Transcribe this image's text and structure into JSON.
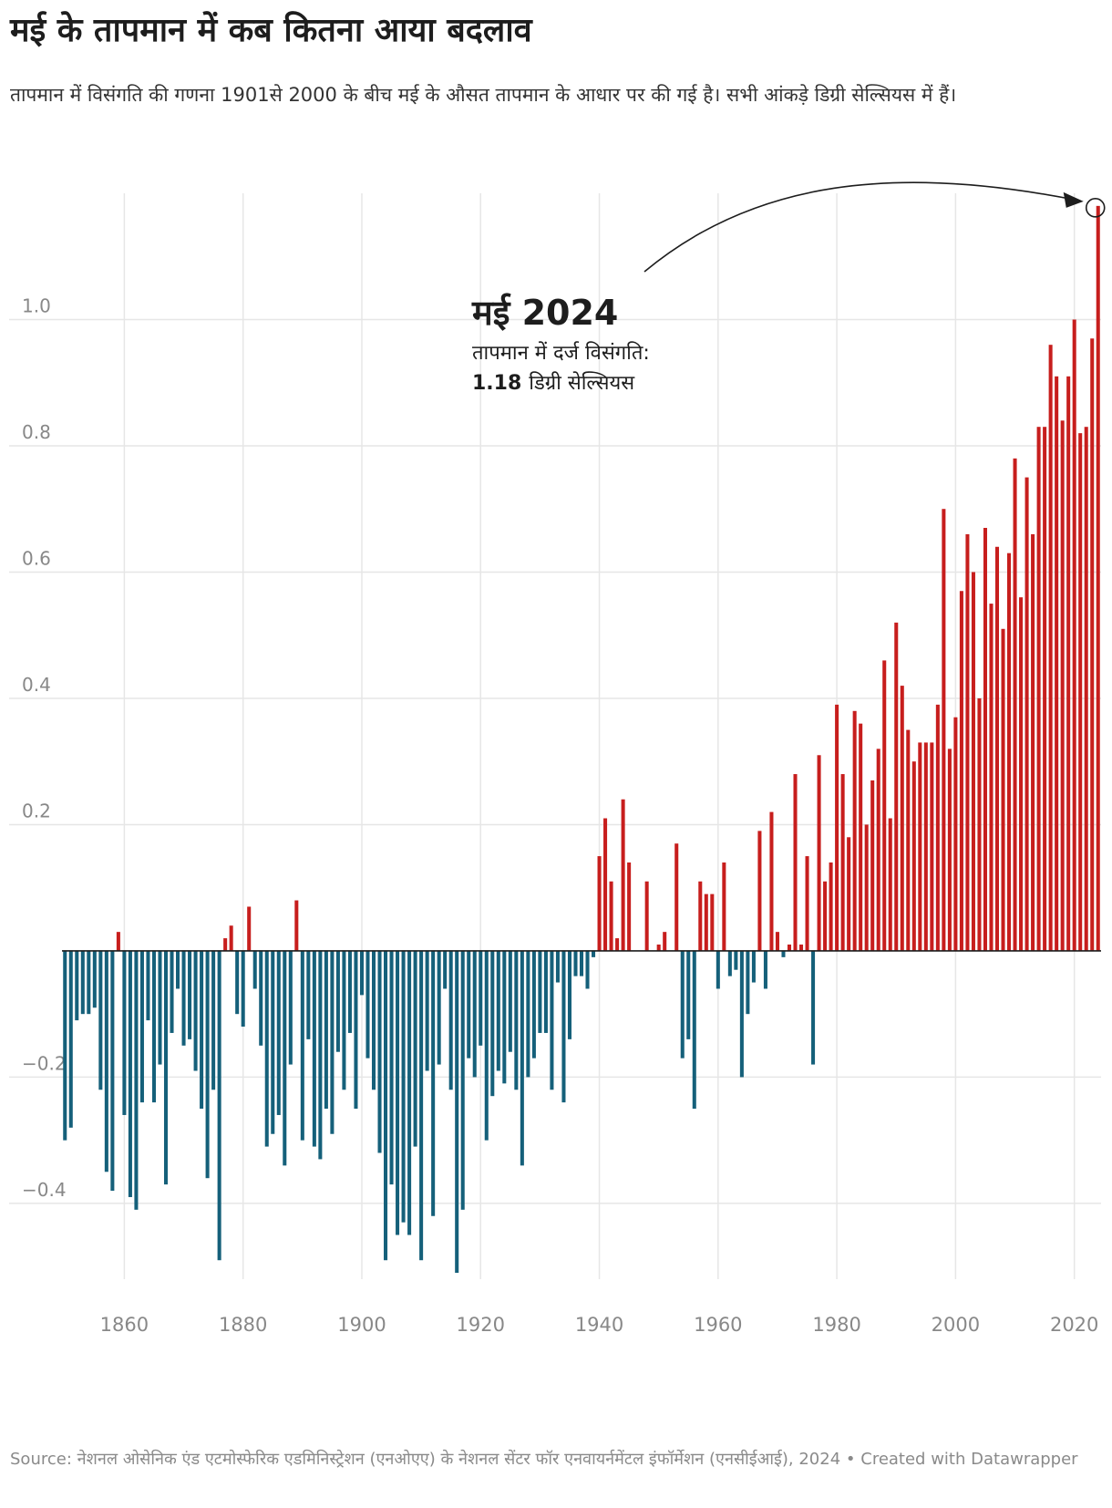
{
  "title": "मई के तापमान में कब कितना आया बदलाव",
  "subtitle": "तापमान में विसंगति की गणना 1901से 2000 के बीच मई के औसत तापमान के आधार पर की गई है। सभी आंकड़े डिग्री सेल्सियस में हैं।",
  "footer": {
    "source_label": "Source:",
    "source": "नेशनल ओसेनिक एंड एटमोस्फेरिक एडमिनिस्ट्रेशन (एनओएए) के नेशनल सेंटर फॉर एनवायर्नमेंटल इंफॉर्मेशन (एनसीईआई), 2024",
    "separator": "•",
    "credit": "Created with Datawrapper"
  },
  "colors": {
    "positive": "#c71e1d",
    "negative": "#15607a",
    "grid": "#e6e6e6",
    "baseline": "#1d1d1d",
    "tick_label": "#888888"
  },
  "annotation": {
    "title": "मई 2024",
    "line1": "तापमान में दर्ज विसंगति:",
    "value": "1.18",
    "unit": "डिग्री सेल्सियस",
    "target_year": 2024
  },
  "chart_data": {
    "type": "bar",
    "title": "मई के तापमान में कब कितना आया बदलाव",
    "xlabel": "",
    "ylabel": "",
    "x_tick_labels": [
      "1860",
      "1880",
      "1900",
      "1920",
      "1940",
      "1960",
      "1980",
      "2000",
      "2020"
    ],
    "y_tick_labels": [
      "-0.4",
      "-0.2",
      "0.2",
      "0.4",
      "0.6",
      "0.8",
      "1.0"
    ],
    "ylim": [
      -0.52,
      1.2
    ],
    "xlim": [
      1850,
      2024
    ],
    "grid": true,
    "years": [
      1850,
      1851,
      1852,
      1853,
      1854,
      1855,
      1856,
      1857,
      1858,
      1859,
      1860,
      1861,
      1862,
      1863,
      1864,
      1865,
      1866,
      1867,
      1868,
      1869,
      1870,
      1871,
      1872,
      1873,
      1874,
      1875,
      1876,
      1877,
      1878,
      1879,
      1880,
      1881,
      1882,
      1883,
      1884,
      1885,
      1886,
      1887,
      1888,
      1889,
      1890,
      1891,
      1892,
      1893,
      1894,
      1895,
      1896,
      1897,
      1898,
      1899,
      1900,
      1901,
      1902,
      1903,
      1904,
      1905,
      1906,
      1907,
      1908,
      1909,
      1910,
      1911,
      1912,
      1913,
      1914,
      1915,
      1916,
      1917,
      1918,
      1919,
      1920,
      1921,
      1922,
      1923,
      1924,
      1925,
      1926,
      1927,
      1928,
      1929,
      1930,
      1931,
      1932,
      1933,
      1934,
      1935,
      1936,
      1937,
      1938,
      1939,
      1940,
      1941,
      1942,
      1943,
      1944,
      1945,
      1946,
      1947,
      1948,
      1949,
      1950,
      1951,
      1952,
      1953,
      1954,
      1955,
      1956,
      1957,
      1958,
      1959,
      1960,
      1961,
      1962,
      1963,
      1964,
      1965,
      1966,
      1967,
      1968,
      1969,
      1970,
      1971,
      1972,
      1973,
      1974,
      1975,
      1976,
      1977,
      1978,
      1979,
      1980,
      1981,
      1982,
      1983,
      1984,
      1985,
      1986,
      1987,
      1988,
      1989,
      1990,
      1991,
      1992,
      1993,
      1994,
      1995,
      1996,
      1997,
      1998,
      1999,
      2000,
      2001,
      2002,
      2003,
      2004,
      2005,
      2006,
      2007,
      2008,
      2009,
      2010,
      2011,
      2012,
      2013,
      2014,
      2015,
      2016,
      2017,
      2018,
      2019,
      2020,
      2021,
      2022,
      2023,
      2024
    ],
    "values": [
      -0.3,
      -0.28,
      -0.11,
      -0.1,
      -0.1,
      -0.09,
      -0.22,
      -0.35,
      -0.38,
      0.03,
      -0.26,
      -0.39,
      -0.41,
      -0.24,
      -0.11,
      -0.24,
      -0.18,
      -0.37,
      -0.13,
      -0.06,
      -0.15,
      -0.14,
      -0.19,
      -0.25,
      -0.36,
      -0.22,
      -0.49,
      0.02,
      0.04,
      -0.1,
      -0.12,
      0.07,
      -0.06,
      -0.15,
      -0.31,
      -0.29,
      -0.26,
      -0.34,
      -0.18,
      0.08,
      -0.3,
      -0.14,
      -0.31,
      -0.33,
      -0.25,
      -0.29,
      -0.16,
      -0.22,
      -0.13,
      -0.25,
      -0.07,
      -0.17,
      -0.22,
      -0.32,
      -0.49,
      -0.37,
      -0.45,
      -0.43,
      -0.45,
      -0.31,
      -0.49,
      -0.19,
      -0.42,
      -0.18,
      -0.06,
      -0.22,
      -0.51,
      -0.41,
      -0.17,
      -0.2,
      -0.15,
      -0.3,
      -0.23,
      -0.19,
      -0.21,
      -0.16,
      -0.22,
      -0.34,
      -0.2,
      -0.17,
      -0.13,
      -0.13,
      -0.22,
      -0.05,
      -0.24,
      -0.14,
      -0.04,
      -0.04,
      -0.06,
      -0.01,
      0.15,
      0.21,
      0.11,
      0.02,
      0.24,
      0.14,
      0.0,
      0.0,
      0.11,
      0.0,
      0.01,
      0.03,
      0.0,
      0.17,
      -0.17,
      -0.14,
      -0.25,
      0.11,
      0.09,
      0.09,
      -0.06,
      0.14,
      -0.04,
      -0.03,
      -0.2,
      -0.1,
      -0.05,
      0.19,
      -0.06,
      0.22,
      0.03,
      -0.01,
      0.01,
      0.28,
      0.01,
      0.15,
      -0.18,
      0.31,
      0.11,
      0.14,
      0.39,
      0.28,
      0.18,
      0.38,
      0.36,
      0.2,
      0.27,
      0.32,
      0.46,
      0.21,
      0.52,
      0.42,
      0.35,
      0.3,
      0.33,
      0.33,
      0.33,
      0.39,
      0.7,
      0.32,
      0.37,
      0.57,
      0.66,
      0.6,
      0.4,
      0.67,
      0.55,
      0.64,
      0.51,
      0.63,
      0.78,
      0.56,
      0.75,
      0.66,
      0.83,
      0.83,
      0.96,
      0.91,
      0.84,
      0.91,
      1.0,
      0.82,
      0.83,
      0.97,
      1.18
    ]
  }
}
